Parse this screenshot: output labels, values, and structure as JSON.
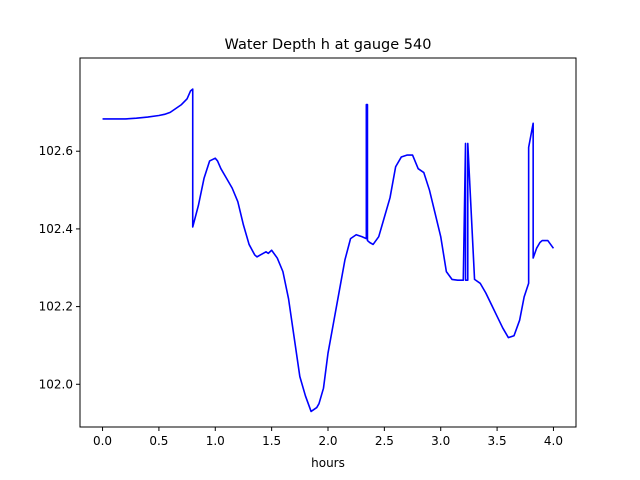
{
  "chart_data": {
    "type": "line",
    "title": "Water Depth h at gauge 540",
    "xlabel": "hours",
    "ylabel": "",
    "xlim": [
      -0.2,
      4.2
    ],
    "ylim": [
      101.89,
      102.84
    ],
    "xticks": [
      0.0,
      0.5,
      1.0,
      1.5,
      2.0,
      2.5,
      3.0,
      3.5,
      4.0
    ],
    "xtick_labels": [
      "0.0",
      "0.5",
      "1.0",
      "1.5",
      "2.0",
      "2.5",
      "3.0",
      "3.5",
      "4.0"
    ],
    "yticks": [
      102.0,
      102.2,
      102.4,
      102.6
    ],
    "ytick_labels": [
      "102.0",
      "102.2",
      "102.4",
      "102.6"
    ],
    "grid": false,
    "series": [
      {
        "color": "#0000ff",
        "x": [
          0.0,
          0.2,
          0.3,
          0.4,
          0.5,
          0.55,
          0.6,
          0.65,
          0.7,
          0.75,
          0.78,
          0.8,
          0.8,
          0.85,
          0.9,
          0.95,
          1.0,
          1.02,
          1.05,
          1.1,
          1.15,
          1.2,
          1.25,
          1.3,
          1.35,
          1.37,
          1.4,
          1.45,
          1.47,
          1.5,
          1.55,
          1.6,
          1.65,
          1.7,
          1.75,
          1.8,
          1.85,
          1.9,
          1.92,
          1.94,
          1.96,
          2.0,
          2.05,
          2.1,
          2.15,
          2.2,
          2.25,
          2.3,
          2.34,
          2.34,
          2.35,
          2.35,
          2.37,
          2.4,
          2.45,
          2.5,
          2.55,
          2.6,
          2.65,
          2.7,
          2.75,
          2.8,
          2.85,
          2.9,
          2.95,
          3.0,
          3.05,
          3.1,
          3.15,
          3.2,
          3.22,
          3.22,
          3.24,
          3.24,
          3.3,
          3.35,
          3.4,
          3.45,
          3.5,
          3.55,
          3.6,
          3.65,
          3.7,
          3.74,
          3.78,
          3.78,
          3.82,
          3.82,
          3.85,
          3.88,
          3.9,
          3.95,
          4.0
        ],
        "y": [
          102.683,
          102.683,
          102.685,
          102.688,
          102.692,
          102.695,
          102.7,
          102.71,
          102.72,
          102.735,
          102.755,
          102.76,
          102.405,
          102.46,
          102.53,
          102.575,
          102.582,
          102.575,
          102.555,
          102.53,
          102.505,
          102.47,
          102.41,
          102.36,
          102.333,
          102.328,
          102.333,
          102.341,
          102.337,
          102.345,
          102.325,
          102.29,
          102.22,
          102.12,
          102.02,
          101.97,
          101.93,
          101.94,
          101.95,
          101.97,
          101.99,
          102.08,
          102.16,
          102.24,
          102.32,
          102.375,
          102.385,
          102.38,
          102.375,
          102.72,
          102.72,
          102.37,
          102.365,
          102.36,
          102.38,
          102.43,
          102.48,
          102.56,
          102.585,
          102.59,
          102.59,
          102.555,
          102.545,
          102.5,
          102.44,
          102.38,
          102.29,
          102.27,
          102.268,
          102.268,
          102.62,
          102.268,
          102.268,
          102.62,
          102.27,
          102.26,
          102.235,
          102.205,
          102.175,
          102.145,
          102.12,
          102.125,
          102.165,
          102.225,
          102.26,
          102.61,
          102.672,
          102.325,
          102.35,
          102.365,
          102.37,
          102.37,
          102.35
        ]
      }
    ]
  }
}
